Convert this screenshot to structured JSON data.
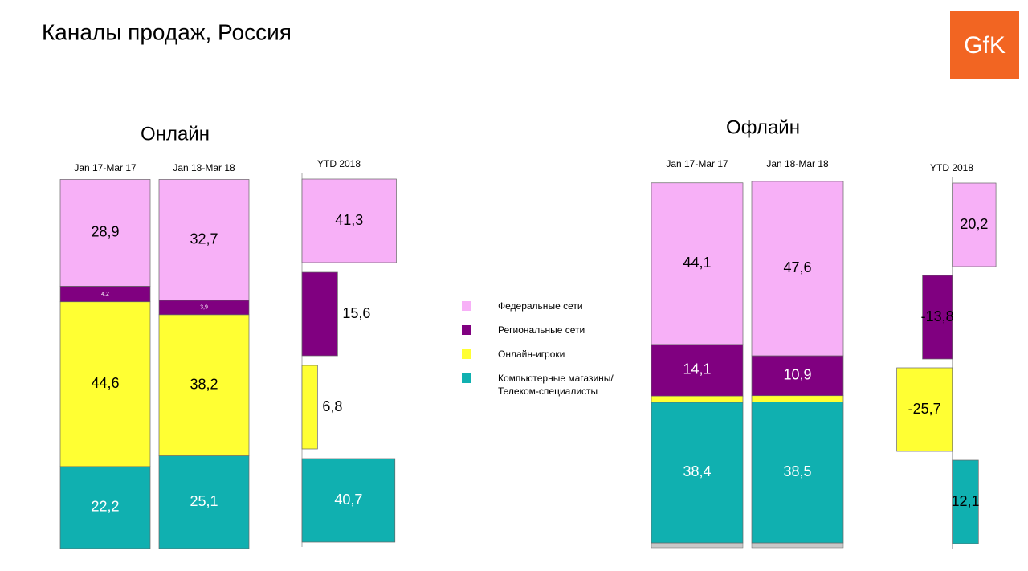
{
  "title": "Каналы продаж, Россия",
  "logo": "GfK",
  "chart_data": [
    {
      "type": "stacked_bar",
      "title": "Онлайн",
      "categories": [
        "Jan 17-Mar 17",
        "Jan 18-Mar 18"
      ],
      "ylim": [
        0,
        100
      ],
      "series": [
        {
          "name": "Федеральные сети",
          "color": "#f7b0f7",
          "values": [
            28.9,
            32.7
          ],
          "value_labels": [
            "28,9",
            "32,7"
          ]
        },
        {
          "name": "Региональные сети",
          "color": "#800080",
          "values": [
            4.2,
            3.9
          ],
          "value_labels": [
            "4,2",
            "3,9"
          ]
        },
        {
          "name": "Онлайн-игроки",
          "color": "#ffff33",
          "values": [
            44.6,
            38.2
          ],
          "value_labels": [
            "44,6",
            "38,2"
          ]
        },
        {
          "name": "Компьютерные магазины/ Телеком-специалисты",
          "color": "#10b0b0",
          "values": [
            22.2,
            25.1
          ],
          "value_labels": [
            "22,2",
            "25,1"
          ]
        }
      ]
    },
    {
      "type": "bar",
      "title": "YTD 2018",
      "orientation": "horizontal",
      "xlim": [
        0,
        45
      ],
      "values": [
        41.3,
        15.6,
        6.8,
        40.7
      ],
      "value_labels": [
        "41,3",
        "15,6",
        "6,8",
        "40,7"
      ],
      "colors": [
        "#f7b0f7",
        "#800080",
        "#ffff33",
        "#10b0b0"
      ]
    },
    {
      "type": "stacked_bar",
      "title": "Офлайн",
      "categories": [
        "Jan 17-Mar 17",
        "Jan 18-Mar 18"
      ],
      "ylim": [
        0,
        100
      ],
      "series": [
        {
          "color": "#f7b0f7",
          "values": [
            44.1,
            47.6
          ],
          "value_labels": [
            "44,1",
            "47,6"
          ]
        },
        {
          "color": "#800080",
          "values": [
            14.1,
            10.9
          ],
          "value_labels": [
            "14,1",
            "10,9"
          ]
        },
        {
          "color": "#ffff33",
          "values": [
            1.7,
            1.7
          ],
          "value_labels": [
            null,
            null
          ]
        },
        {
          "color": "#10b0b0",
          "values": [
            38.4,
            38.5
          ],
          "value_labels": [
            "38,4",
            "38,5"
          ]
        }
      ]
    },
    {
      "type": "bar",
      "title": "YTD 2018",
      "orientation": "horizontal",
      "xlim": [
        -30,
        25
      ],
      "values": [
        20.2,
        -13.8,
        -25.7,
        12.1
      ],
      "value_labels": [
        "20,2",
        "-13,8",
        "-25,7",
        "12,1"
      ],
      "colors": [
        "#f7b0f7",
        "#800080",
        "#ffff33",
        "#10b0b0"
      ]
    }
  ]
}
